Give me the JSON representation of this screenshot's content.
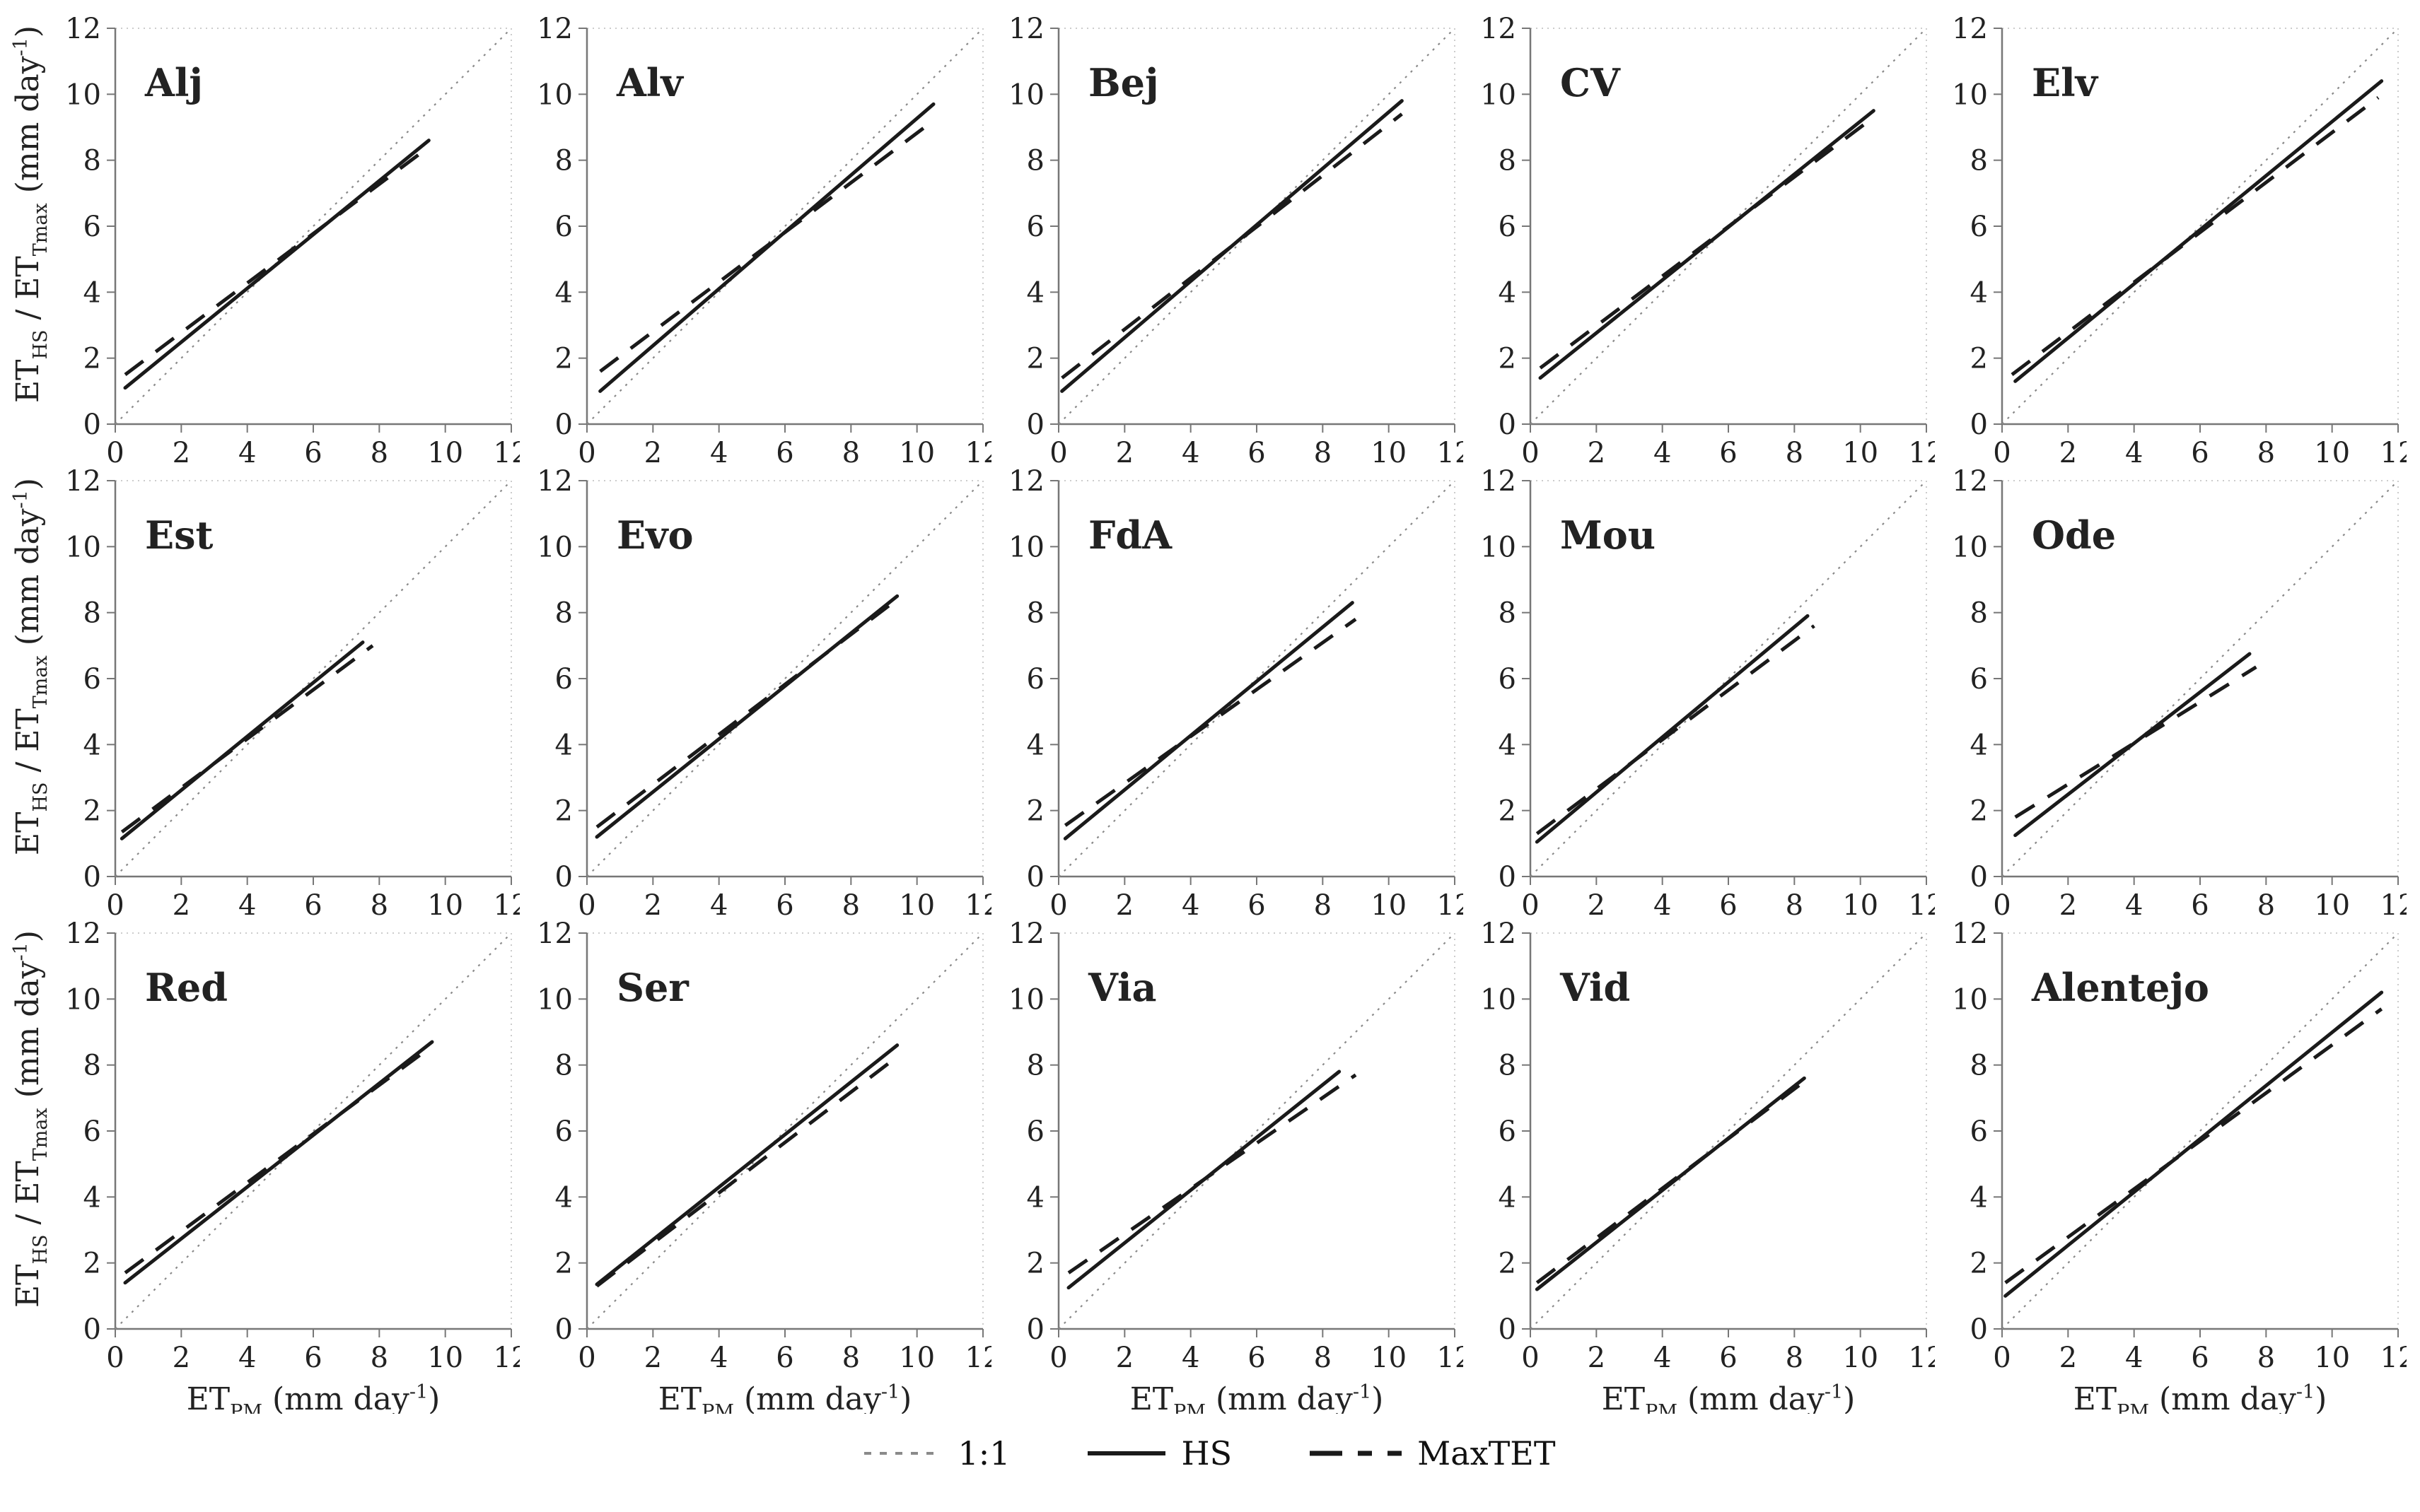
{
  "chart_data": {
    "type": "line",
    "axes": {
      "xlim": [
        0,
        12
      ],
      "ylim": [
        0,
        12
      ],
      "ticks": [
        "0",
        "2",
        "4",
        "6",
        "8",
        "10",
        "12"
      ],
      "tick_values": [
        0,
        2,
        4,
        6,
        8,
        10,
        12
      ],
      "xlabel_parts": [
        {
          "text": "ET",
          "kind": "base"
        },
        {
          "text": "PM",
          "kind": "sub"
        },
        {
          "text": " (mm day",
          "kind": "base"
        },
        {
          "text": "-1",
          "kind": "sup"
        },
        {
          "text": ")",
          "kind": "base"
        }
      ],
      "ylabel_parts": [
        {
          "text": "ET",
          "kind": "base"
        },
        {
          "text": "HS",
          "kind": "sub"
        },
        {
          "text": " / ET",
          "kind": "base"
        },
        {
          "text": "Tmax",
          "kind": "sub"
        },
        {
          "text": " (mm day",
          "kind": "base"
        },
        {
          "text": "-1",
          "kind": "sup"
        },
        {
          "text": ")",
          "kind": "base"
        }
      ],
      "grid": false
    },
    "colors": {
      "hs_line": "#1a1a1a",
      "maxtet_line": "#1a1a1a",
      "one_to_one_line": "#8a8a8a",
      "axis_line": "#777777",
      "box_line": "#bbbbbb"
    },
    "series_meta": [
      {
        "name": "1:1",
        "style": "dotted",
        "color": "#8a8a8a"
      },
      {
        "name": "HS",
        "style": "solid",
        "color": "#1a1a1a"
      },
      {
        "name": "MaxTET",
        "style": "dashed",
        "color": "#1a1a1a"
      }
    ],
    "panels": [
      {
        "label": "Alj",
        "hs": {
          "x1": 0.3,
          "y1": 1.1,
          "x2": 9.5,
          "y2": 8.6
        },
        "maxtet": {
          "x1": 0.3,
          "y1": 1.5,
          "x2": 9.5,
          "y2": 8.4
        }
      },
      {
        "label": "Alv",
        "hs": {
          "x1": 0.4,
          "y1": 1.0,
          "x2": 10.5,
          "y2": 9.7
        },
        "maxtet": {
          "x1": 0.4,
          "y1": 1.6,
          "x2": 10.5,
          "y2": 9.2
        }
      },
      {
        "label": "Bej",
        "hs": {
          "x1": 0.1,
          "y1": 1.0,
          "x2": 10.4,
          "y2": 9.8
        },
        "maxtet": {
          "x1": 0.1,
          "y1": 1.4,
          "x2": 10.4,
          "y2": 9.4
        }
      },
      {
        "label": "CV",
        "hs": {
          "x1": 0.3,
          "y1": 1.4,
          "x2": 10.4,
          "y2": 9.5
        },
        "maxtet": {
          "x1": 0.3,
          "y1": 1.7,
          "x2": 10.4,
          "y2": 9.3
        }
      },
      {
        "label": "Elv",
        "hs": {
          "x1": 0.4,
          "y1": 1.3,
          "x2": 11.5,
          "y2": 10.4
        },
        "maxtet": {
          "x1": 0.3,
          "y1": 1.5,
          "x2": 11.4,
          "y2": 9.9
        }
      },
      {
        "label": "Est",
        "hs": {
          "x1": 0.2,
          "y1": 1.15,
          "x2": 7.5,
          "y2": 7.1
        },
        "maxtet": {
          "x1": 0.2,
          "y1": 1.35,
          "x2": 7.8,
          "y2": 7.0
        }
      },
      {
        "label": "Evo",
        "hs": {
          "x1": 0.3,
          "y1": 1.2,
          "x2": 9.4,
          "y2": 8.5
        },
        "maxtet": {
          "x1": 0.3,
          "y1": 1.5,
          "x2": 9.4,
          "y2": 8.4
        }
      },
      {
        "label": "FdA",
        "hs": {
          "x1": 0.2,
          "y1": 1.15,
          "x2": 8.9,
          "y2": 8.3
        },
        "maxtet": {
          "x1": 0.2,
          "y1": 1.55,
          "x2": 9.0,
          "y2": 7.8
        }
      },
      {
        "label": "Mou",
        "hs": {
          "x1": 0.2,
          "y1": 1.05,
          "x2": 8.4,
          "y2": 7.9
        },
        "maxtet": {
          "x1": 0.2,
          "y1": 1.3,
          "x2": 8.6,
          "y2": 7.6
        }
      },
      {
        "label": "Ode",
        "hs": {
          "x1": 0.4,
          "y1": 1.25,
          "x2": 7.5,
          "y2": 6.75
        },
        "maxtet": {
          "x1": 0.4,
          "y1": 1.8,
          "x2": 7.7,
          "y2": 6.35
        }
      },
      {
        "label": "Red",
        "hs": {
          "x1": 0.3,
          "y1": 1.4,
          "x2": 9.6,
          "y2": 8.7
        },
        "maxtet": {
          "x1": 0.3,
          "y1": 1.7,
          "x2": 9.5,
          "y2": 8.5
        }
      },
      {
        "label": "Ser",
        "hs": {
          "x1": 0.3,
          "y1": 1.35,
          "x2": 9.4,
          "y2": 8.6
        },
        "maxtet": {
          "x1": 0.3,
          "y1": 1.3,
          "x2": 9.4,
          "y2": 8.25
        }
      },
      {
        "label": "Via",
        "hs": {
          "x1": 0.3,
          "y1": 1.25,
          "x2": 8.5,
          "y2": 7.8
        },
        "maxtet": {
          "x1": 0.3,
          "y1": 1.7,
          "x2": 9.0,
          "y2": 7.7
        }
      },
      {
        "label": "Vid",
        "hs": {
          "x1": 0.2,
          "y1": 1.2,
          "x2": 8.3,
          "y2": 7.6
        },
        "maxtet": {
          "x1": 0.2,
          "y1": 1.4,
          "x2": 8.3,
          "y2": 7.5
        }
      },
      {
        "label": "Alentejo",
        "hs": {
          "x1": 0.1,
          "y1": 1.0,
          "x2": 11.5,
          "y2": 10.2
        },
        "maxtet": {
          "x1": 0.1,
          "y1": 1.4,
          "x2": 11.5,
          "y2": 9.7
        }
      }
    ],
    "legend": [
      {
        "label": "1:1"
      },
      {
        "label": "HS"
      },
      {
        "label": "MaxTET"
      }
    ]
  }
}
